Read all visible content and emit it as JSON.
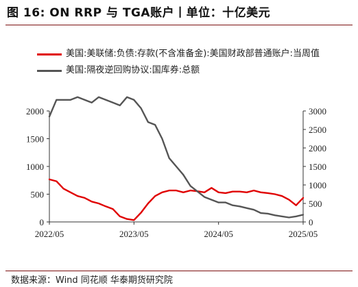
{
  "header": {
    "title": "图 16: ON RRP 与 TGA账户丨单位：十亿美元"
  },
  "source": "数据来源：Wind 同花顺 华泰期货研究院",
  "colors": {
    "rrp": "#e00000",
    "tga": "#555555",
    "frame": "#7b0f0f",
    "axis": "#333333"
  },
  "chart_data": {
    "type": "line",
    "x_ticks": [
      "2022/05",
      "2023/05",
      "2024/05",
      "2025/05"
    ],
    "x_range": [
      "2022/05",
      "2025/05"
    ],
    "y_left": {
      "range": [
        0,
        2000
      ],
      "ticks": [
        "0",
        "500",
        "1000",
        "1500",
        "2000"
      ]
    },
    "y_right": {
      "range": [
        0,
        3000
      ],
      "ticks": [
        "0",
        "500",
        "1000",
        "1500",
        "2000",
        "2500",
        "3000"
      ]
    },
    "series": [
      {
        "name": "美国:美联储:负债:存款(不含准备金):美国财政部普通账户:当周值",
        "axis": "right",
        "color": "#e00000",
        "points": [
          [
            "2022-05",
            1150
          ],
          [
            "2022-06",
            1100
          ],
          [
            "2022-07",
            900
          ],
          [
            "2022-08",
            800
          ],
          [
            "2022-09",
            700
          ],
          [
            "2022-10",
            650
          ],
          [
            "2022-11",
            550
          ],
          [
            "2022-12",
            500
          ],
          [
            "2023-01",
            420
          ],
          [
            "2023-02",
            350
          ],
          [
            "2023-03",
            150
          ],
          [
            "2023-04",
            80
          ],
          [
            "2023-05",
            50
          ],
          [
            "2023-06",
            250
          ],
          [
            "2023-07",
            500
          ],
          [
            "2023-08",
            700
          ],
          [
            "2023-09",
            800
          ],
          [
            "2023-10",
            850
          ],
          [
            "2023-11",
            850
          ],
          [
            "2023-12",
            800
          ],
          [
            "2024-01",
            850
          ],
          [
            "2024-02",
            830
          ],
          [
            "2024-03",
            800
          ],
          [
            "2024-04",
            920
          ],
          [
            "2024-05",
            800
          ],
          [
            "2024-06",
            780
          ],
          [
            "2024-07",
            820
          ],
          [
            "2024-08",
            820
          ],
          [
            "2024-09",
            800
          ],
          [
            "2024-10",
            850
          ],
          [
            "2024-11",
            800
          ],
          [
            "2024-12",
            780
          ],
          [
            "2025-01",
            750
          ],
          [
            "2025-02",
            700
          ],
          [
            "2025-03",
            600
          ],
          [
            "2025-04",
            450
          ],
          [
            "2025-05",
            650
          ]
        ]
      },
      {
        "name": "美国:隔夜逆回购协议:国库券:总额",
        "axis": "left",
        "color": "#555555",
        "points": [
          [
            "2022-05",
            1900
          ],
          [
            "2022-06",
            2200
          ],
          [
            "2022-07",
            2200
          ],
          [
            "2022-08",
            2200
          ],
          [
            "2022-09",
            2250
          ],
          [
            "2022-10",
            2200
          ],
          [
            "2022-11",
            2150
          ],
          [
            "2022-12",
            2250
          ],
          [
            "2023-01",
            2200
          ],
          [
            "2023-02",
            2150
          ],
          [
            "2023-03",
            2100
          ],
          [
            "2023-04",
            2250
          ],
          [
            "2023-05",
            2200
          ],
          [
            "2023-06",
            2050
          ],
          [
            "2023-07",
            1800
          ],
          [
            "2023-08",
            1750
          ],
          [
            "2023-09",
            1500
          ],
          [
            "2023-10",
            1150
          ],
          [
            "2023-11",
            1000
          ],
          [
            "2023-12",
            850
          ],
          [
            "2024-01",
            650
          ],
          [
            "2024-02",
            550
          ],
          [
            "2024-03",
            450
          ],
          [
            "2024-04",
            400
          ],
          [
            "2024-05",
            350
          ],
          [
            "2024-06",
            350
          ],
          [
            "2024-07",
            300
          ],
          [
            "2024-08",
            280
          ],
          [
            "2024-09",
            250
          ],
          [
            "2024-10",
            220
          ],
          [
            "2024-11",
            160
          ],
          [
            "2024-12",
            150
          ],
          [
            "2025-01",
            120
          ],
          [
            "2025-02",
            100
          ],
          [
            "2025-03",
            80
          ],
          [
            "2025-04",
            100
          ],
          [
            "2025-05",
            130
          ]
        ]
      }
    ]
  }
}
